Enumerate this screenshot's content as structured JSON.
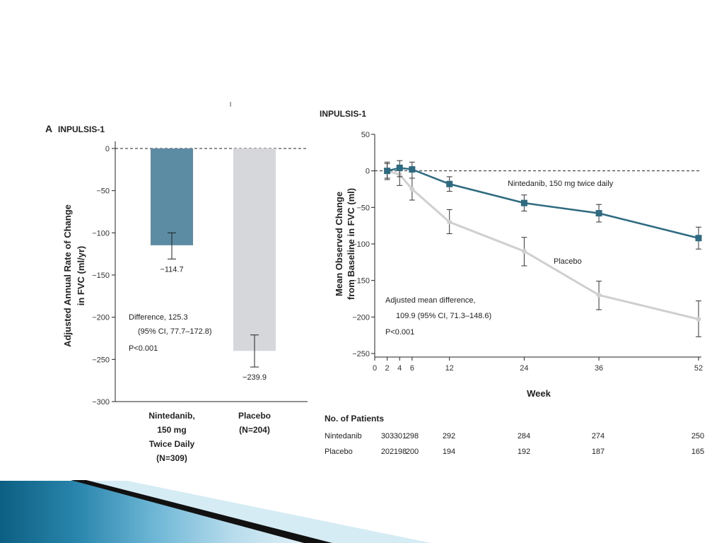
{
  "chart_data": [
    {
      "type": "bar",
      "panel_label": "A",
      "title": "INPULSIS-1",
      "ylabel": "Adjusted Annual Rate of Change in FVC (ml/yr)",
      "ylabel_lines": [
        "Adjusted Annual Rate of Change",
        "in FVC (ml/yr)"
      ],
      "ylim": [
        -300,
        0
      ],
      "yticks": [
        0,
        -50,
        -100,
        -150,
        -200,
        -250,
        -300
      ],
      "reference_line": 0,
      "categories": [
        "Nintedanib, 150 mg Twice Daily (N=309)",
        "Placebo (N=204)"
      ],
      "category_lines": [
        [
          "Nintedanib,",
          "150 mg",
          "Twice Daily",
          "(N=309)"
        ],
        [
          "Placebo",
          "(N=204)"
        ]
      ],
      "values": [
        -114.7,
        -239.9
      ],
      "value_labels": [
        "−114.7",
        "−239.9"
      ],
      "errors": [
        [
          -131,
          -100
        ],
        [
          -259,
          -221
        ]
      ],
      "colors": [
        "#5b8ca3",
        "#d5d7db"
      ],
      "annotation": [
        "Difference, 125.3",
        "(95% CI, 77.7–172.8)",
        "P<0.001"
      ]
    },
    {
      "type": "line",
      "title": "INPULSIS-1",
      "xlabel": "Week",
      "ylabel": "Mean Observed Change from Baseline in FVC (ml)",
      "ylabel_lines": [
        "Mean Observed Change",
        "from Baseline in FVC (ml)"
      ],
      "xlim": [
        0,
        52
      ],
      "xticks": [
        0,
        2,
        4,
        6,
        12,
        24,
        36,
        52
      ],
      "ylim": [
        -250,
        50
      ],
      "yticks": [
        50,
        0,
        -50,
        -100,
        -150,
        -200,
        -250
      ],
      "reference_line": 0,
      "series": [
        {
          "name": "Nintedanib, 150 mg twice daily",
          "color": "#2e6a80",
          "marker": "square",
          "x": [
            2,
            4,
            6,
            12,
            24,
            36,
            52
          ],
          "y": [
            0,
            4,
            2,
            -18,
            -44,
            -58,
            -92
          ],
          "err_low": [
            -12,
            -8,
            -10,
            -28,
            -55,
            -70,
            -107
          ],
          "err_high": [
            12,
            14,
            12,
            -8,
            -33,
            -46,
            -77
          ]
        },
        {
          "name": "Placebo",
          "color": "#cfcfcf",
          "marker": "circle",
          "x": [
            2,
            4,
            6,
            12,
            24,
            36,
            52
          ],
          "y": [
            0,
            -5,
            -25,
            -70,
            -110,
            -170,
            -203
          ],
          "err_low": [
            -10,
            -20,
            -40,
            -86,
            -130,
            -190,
            -227
          ],
          "err_high": [
            10,
            8,
            -10,
            -53,
            -91,
            -151,
            -178
          ]
        }
      ],
      "annotation": [
        "Adjusted mean difference,",
        "109.9 (95% CI, 71.3–148.6)",
        "P<0.001"
      ],
      "patients_table": {
        "header": "No. of Patients",
        "rows": [
          {
            "label": "Nintedanib",
            "values": [
              303,
              301,
              298,
              292,
              284,
              274,
              250
            ]
          },
          {
            "label": "Placebo",
            "values": [
              202,
              198,
              200,
              194,
              192,
              187,
              165
            ]
          }
        ]
      }
    }
  ],
  "decor": {
    "banner_colors": [
      "#0e6a8f",
      "#2c8db5",
      "#78c0de",
      "#c9e6f2",
      "#111111"
    ]
  }
}
